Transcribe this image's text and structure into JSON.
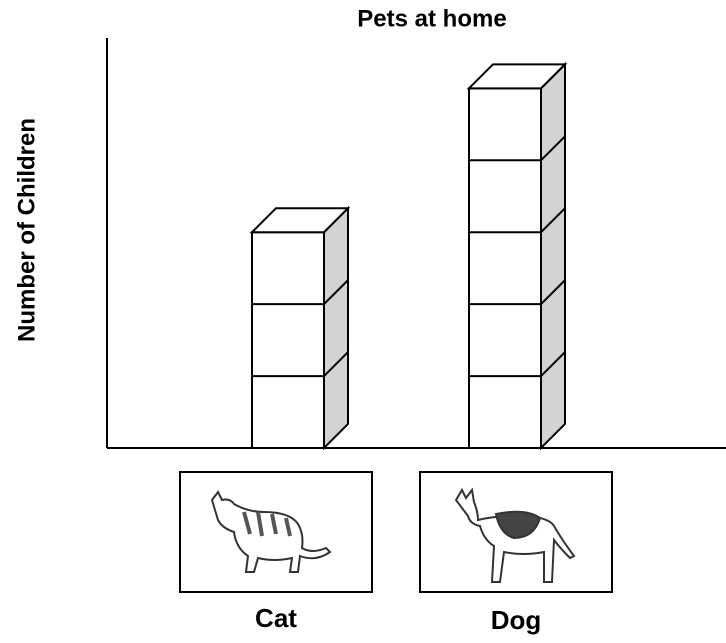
{
  "chart_data": {
    "type": "bar",
    "title": "Pets at home",
    "y_label": "Number of Children",
    "categories": [
      "Cat",
      "Dog"
    ],
    "values": [
      3,
      5
    ],
    "color": "#ffffff",
    "side_color": "#d3d3d3",
    "ylim": [
      0,
      5.7
    ]
  }
}
